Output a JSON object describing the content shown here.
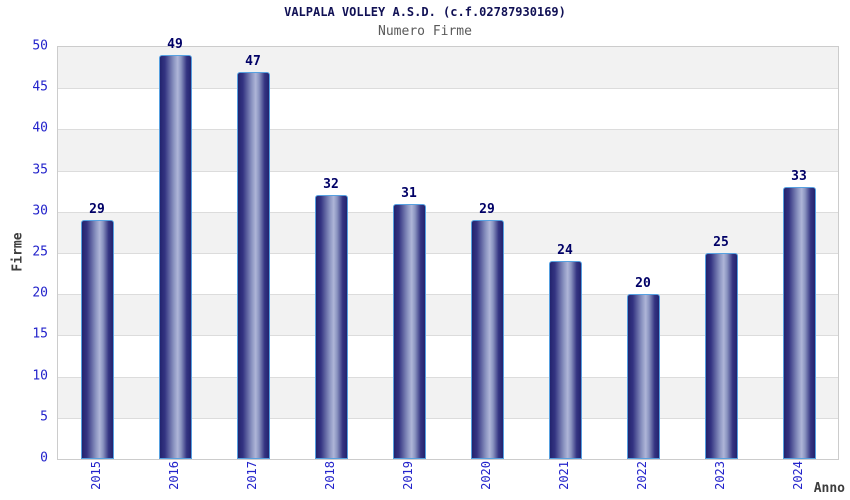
{
  "chart_data": {
    "type": "bar",
    "title": "VALPALA VOLLEY A.S.D. (c.f.02787930169)",
    "subtitle": "Numero Firme",
    "xlabel": "Anno",
    "ylabel": "Firme",
    "categories": [
      "2015",
      "2016",
      "2017",
      "2018",
      "2019",
      "2020",
      "2021",
      "2022",
      "2023",
      "2024"
    ],
    "values": [
      29,
      49,
      47,
      32,
      31,
      29,
      24,
      20,
      25,
      33
    ],
    "ylim": [
      0,
      50
    ],
    "yticks": [
      0,
      5,
      10,
      15,
      20,
      25,
      30,
      35,
      40,
      45,
      50
    ],
    "legend_position": "none",
    "grid": "horizontal-bands-alternating",
    "colors": {
      "title": "#111155",
      "subtitle": "#5a5a5a",
      "axis_tick_labels": "#2323cb",
      "axis_titles": "#3d3d3d",
      "value_labels": "#000066",
      "bar_edge": "#56a0e0",
      "bar_dark": "#23236e",
      "bar_light": "#aeb5d8",
      "band_gray": "#f2f2f2",
      "band_white": "#ffffff",
      "gridline": "#dcdcdc",
      "plot_border": "#cccccc",
      "background": "#ffffff"
    }
  }
}
